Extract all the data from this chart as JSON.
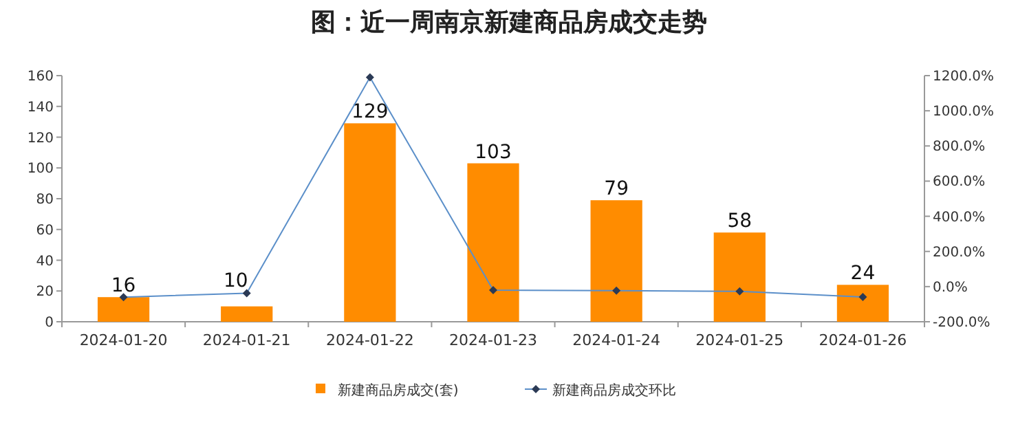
{
  "chart_data": {
    "type": "bar",
    "title": "图：近一周南京新建商品房成交走势",
    "categories": [
      "2024-01-20",
      "2024-01-21",
      "2024-01-22",
      "2024-01-23",
      "2024-01-24",
      "2024-01-25",
      "2024-01-26"
    ],
    "series": [
      {
        "name": "新建商品房成交(套)",
        "color": "#ff8c00",
        "values": [
          16,
          10,
          129,
          103,
          79,
          58,
          24
        ],
        "value_labels": [
          "16",
          "10",
          "129",
          "103",
          "79",
          "58",
          "24"
        ]
      },
      {
        "name": "新建商品房成交环比",
        "type": "line",
        "axis": "y2",
        "color": "#5b8fc9",
        "values": [
          -60,
          -38,
          1190,
          -20,
          -23,
          -27,
          -59
        ]
      }
    ],
    "marker": "diamond",
    "ylim": [
      0,
      160
    ],
    "yticks": [
      0,
      20,
      40,
      60,
      80,
      100,
      120,
      140,
      160
    ],
    "y2lim": [
      -200,
      1200
    ],
    "y2ticks": [
      {
        "value": -200,
        "label": "-200.0%"
      },
      {
        "value": 0,
        "label": "0.0%"
      },
      {
        "value": 200,
        "label": "200.0%"
      },
      {
        "value": 400,
        "label": "400.0%"
      },
      {
        "value": 600,
        "label": "600.0%"
      },
      {
        "value": 800,
        "label": "800.0%"
      },
      {
        "value": 1000,
        "label": "1000.0%"
      },
      {
        "value": 1200,
        "label": "1200.0%"
      }
    ],
    "legend": "bottom",
    "grid": false
  }
}
